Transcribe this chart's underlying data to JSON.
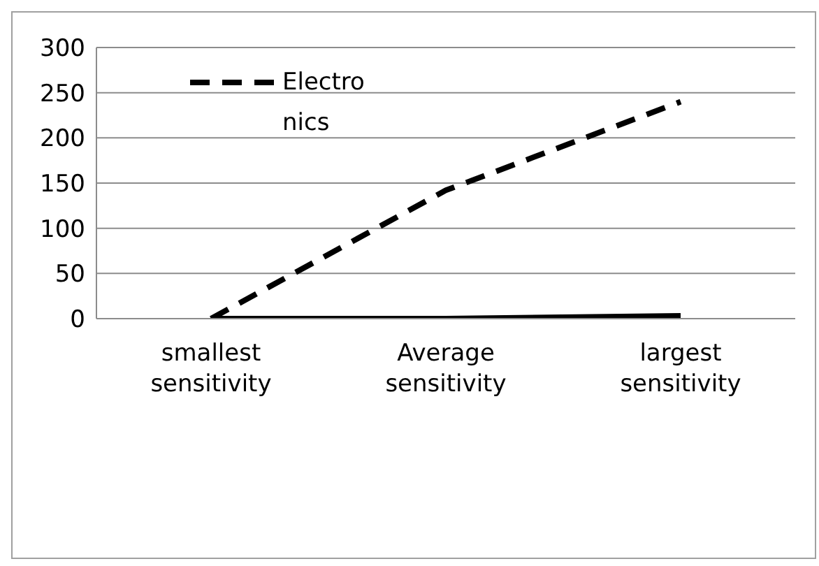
{
  "chart_data": {
    "type": "line",
    "categories": [
      "smallest sensitivity",
      "Average sensitivity",
      "largest sensitivity"
    ],
    "series": [
      {
        "name": "Electronics",
        "color": "#000000",
        "line_style": "dashed",
        "values": [
          0,
          142,
          240
        ]
      },
      {
        "color": "#000000",
        "line_style": "solid",
        "values": [
          0,
          0,
          3
        ]
      }
    ],
    "ylim": [
      0,
      300
    ],
    "yticks": [
      0,
      50,
      100,
      150,
      200,
      250,
      300
    ],
    "grid": "y",
    "legend": "top left",
    "marker": "none"
  }
}
